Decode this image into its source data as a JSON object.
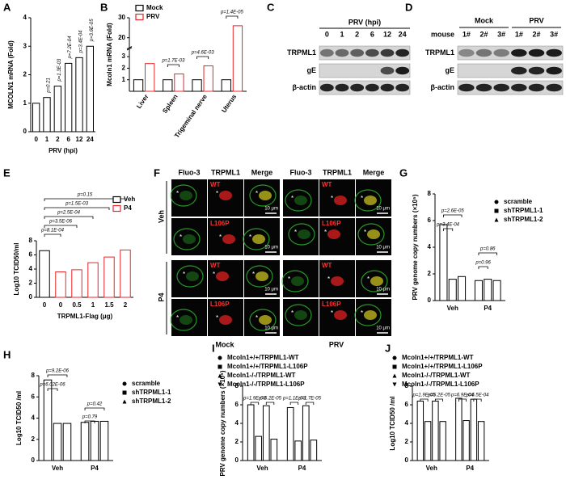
{
  "chart_data": [
    {
      "type": "bar",
      "label": "A",
      "ylabel": "MCOLN1 mRNA (Fold)",
      "xlabel": "PRV (hpi)",
      "categories": [
        "0",
        "1",
        "2",
        "6",
        "12",
        "24"
      ],
      "values": [
        1.0,
        1.2,
        1.6,
        2.4,
        2.6,
        3.0
      ],
      "color": "#000000",
      "ylim": [
        0,
        4
      ],
      "yticks": [
        0,
        1,
        2,
        3,
        4
      ],
      "annotations": [
        "p=0.21",
        "p=1.3E-03",
        "p=7.2E-04",
        "p=3.4E-04",
        "p=3.6E-05"
      ]
    },
    {
      "type": "bar",
      "label": "B",
      "ylabel": "Mcoln1 mRNA (Fold)",
      "categories": [
        "Liver",
        "Spleen",
        "Trigeminal nerve",
        "Uterus"
      ],
      "series": [
        {
          "name": "Mock",
          "color": "#000000",
          "values": [
            1.0,
            1.0,
            1.0,
            1.0
          ]
        },
        {
          "name": "PRV",
          "color": "#e8262a",
          "values": [
            2.4,
            1.5,
            2.2,
            26
          ]
        }
      ],
      "ylim": [
        0,
        30
      ],
      "ybreak": [
        3.5,
        16
      ],
      "yticks": [
        1,
        2,
        3,
        20,
        30
      ],
      "annotations": [
        "p=1.7E-03",
        "p=4.6E-03",
        "p=1.4E-05"
      ]
    },
    {
      "type": "bar",
      "label": "E",
      "ylabel": "Log10 TCID50/ml",
      "xlabel": "TRPML1-Flag (μg)",
      "categories": [
        "0",
        "0",
        "0.5",
        "1",
        "1.5",
        "2"
      ],
      "series": [
        {
          "name": "Veh",
          "color": "#000000",
          "values": [
            6.6,
            null,
            null,
            null,
            null,
            null
          ]
        },
        {
          "name": "P4",
          "color": "#e8262a",
          "values": [
            null,
            3.6,
            3.9,
            4.9,
            5.7,
            6.7
          ]
        }
      ],
      "ylim": [
        0,
        8
      ],
      "yticks": [
        0,
        2,
        4,
        6,
        8
      ],
      "annotations": [
        "p=8.1E-04",
        "p=3.5E-06",
        "p=2.5E-04",
        "p=1.5E-03",
        "p=0.15"
      ]
    },
    {
      "type": "bar",
      "label": "G",
      "ylabel": "PRV genome copy numbers (×10⁵)",
      "categories": [
        "Veh",
        "P4"
      ],
      "series": [
        {
          "name": "scramble",
          "color": "#000000",
          "marker": "circle",
          "values": [
            5.7,
            1.5
          ]
        },
        {
          "name": "shTRPML1-1",
          "color": "#000000",
          "marker": "square",
          "values": [
            1.6,
            1.6
          ]
        },
        {
          "name": "shTRPML1-2",
          "color": "#000000",
          "marker": "triangle",
          "values": [
            1.8,
            1.5
          ]
        }
      ],
      "ylim": [
        0,
        8
      ],
      "yticks": [
        0,
        2,
        4,
        6,
        8
      ],
      "annotations": [
        "p=3.4E-04",
        "p=2.6E-05",
        "p=0.96",
        "p=0.86"
      ]
    },
    {
      "type": "bar",
      "label": "H",
      "ylabel": "Log10 TCID50 /ml",
      "categories": [
        "Veh",
        "P4"
      ],
      "series": [
        {
          "name": "scramble",
          "color": "#000000",
          "marker": "circle",
          "values": [
            7.6,
            3.6
          ]
        },
        {
          "name": "shTRPML1-1",
          "color": "#000000",
          "marker": "square",
          "values": [
            3.5,
            3.7
          ]
        },
        {
          "name": "shTRPML1-2",
          "color": "#000000",
          "marker": "triangle",
          "values": [
            3.5,
            3.7
          ]
        }
      ],
      "ylim": [
        0,
        8
      ],
      "yticks": [
        0,
        2,
        4,
        6,
        8
      ],
      "annotations": [
        "p=6.02E-06",
        "p=9.2E-06",
        "p=0.79",
        "p=0.42"
      ]
    },
    {
      "type": "bar",
      "label": "I",
      "ylabel": "PRV genome copy numbers (×10⁵)",
      "categories": [
        "Veh",
        "P4"
      ],
      "series": [
        {
          "name": "Mcoln1+/+/TRPML1-WT",
          "color": "#000000",
          "marker": "circle",
          "values": [
            6.0,
            5.7
          ]
        },
        {
          "name": "Mcoln1+/+/TRPML1-L106P",
          "color": "#000000",
          "marker": "square",
          "values": [
            2.6,
            2.1
          ]
        },
        {
          "name": "Mcoln1-/-/TRPML1-WT",
          "color": "#000000",
          "marker": "triangle",
          "values": [
            5.9,
            5.9
          ]
        },
        {
          "name": "Mcoln1-/-/TRPML1-L106P",
          "color": "#000000",
          "marker": "triangle-down",
          "values": [
            2.3,
            2.2
          ]
        }
      ],
      "ylim": [
        0,
        8
      ],
      "yticks": [
        0,
        2,
        4,
        6,
        8
      ],
      "annotations": [
        "p=1.9E-03",
        "p=6.2E-05",
        "p=1.1E-03",
        "p=1.7E-05"
      ]
    },
    {
      "type": "bar",
      "label": "J",
      "ylabel": "Log10 TCID50 /ml",
      "categories": [
        "Veh",
        "P4"
      ],
      "series": [
        {
          "name": "Mcoln1+/+/TRPML1-WT",
          "color": "#000000",
          "marker": "circle",
          "values": [
            6.4,
            6.7
          ]
        },
        {
          "name": "Mcoln1+/+/TRPML1-L106P",
          "color": "#000000",
          "marker": "square",
          "values": [
            4.2,
            4.3
          ]
        },
        {
          "name": "Mcoln1-/-/TRPML1-WT",
          "color": "#000000",
          "marker": "triangle",
          "values": [
            6.4,
            6.6
          ]
        },
        {
          "name": "Mcoln1-/-/TRPML1-L106P",
          "color": "#000000",
          "marker": "triangle-down",
          "values": [
            4.2,
            4.2
          ]
        }
      ],
      "ylim": [
        0,
        8
      ],
      "yticks": [
        0,
        2,
        4,
        6,
        8
      ],
      "annotations": [
        "p=1.9E-05",
        "p=5.2E-05",
        "p=6.9E-04",
        "p=6.5E-04"
      ]
    }
  ],
  "blot_c": {
    "label": "C",
    "title": "PRV (hpi)",
    "lanes": [
      "0",
      "1",
      "2",
      "6",
      "12",
      "24"
    ],
    "rows": [
      "TRPML1",
      "gE",
      "β-actin"
    ]
  },
  "blot_d": {
    "label": "D",
    "row_label": "mouse",
    "groups": [
      "Mock",
      "PRV"
    ],
    "lanes": [
      "1#",
      "2#",
      "3#",
      "1#",
      "2#",
      "3#"
    ],
    "rows": [
      "TRPML1",
      "gE",
      "β-actin"
    ]
  },
  "micro_f": {
    "label": "F",
    "channels": [
      "Fluo-3",
      "TRPML1",
      "Merge"
    ],
    "groups": [
      "Mock",
      "PRV"
    ],
    "treatments": [
      "Veh",
      "P4"
    ],
    "variants": [
      "WT",
      "L106P"
    ],
    "scale": "10 μm"
  }
}
